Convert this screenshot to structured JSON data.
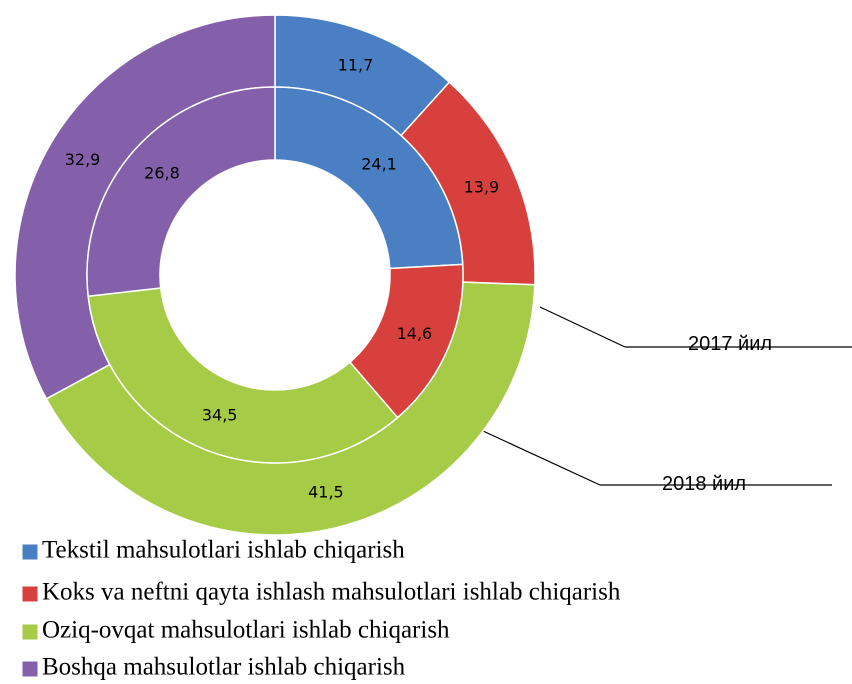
{
  "chart_data": {
    "type": "donut",
    "categories": [
      "Tekstil mahsulotlari ishlab chiqarish",
      "Koks va neftni qayta ishlash mahsulotlari ishlab chiqarish",
      "Oziq-ovqat mahsulotlari ishlab chiqarish",
      "Boshqa mahsulotlar ishlab chiqarish"
    ],
    "colors": [
      "#4a7fc4",
      "#d8403e",
      "#a6cb46",
      "#8460aa"
    ],
    "series": [
      {
        "name": "2017 йил",
        "values": [
          11.7,
          13.9,
          41.5,
          32.9
        ],
        "value_labels": [
          "11,7",
          "13,9",
          "41,5",
          "32,9"
        ]
      },
      {
        "name": "2018 йил",
        "values": [
          24.1,
          14.6,
          34.5,
          26.8
        ],
        "value_labels": [
          "24,1",
          "14,6",
          "34,5",
          "26,8"
        ]
      }
    ]
  }
}
